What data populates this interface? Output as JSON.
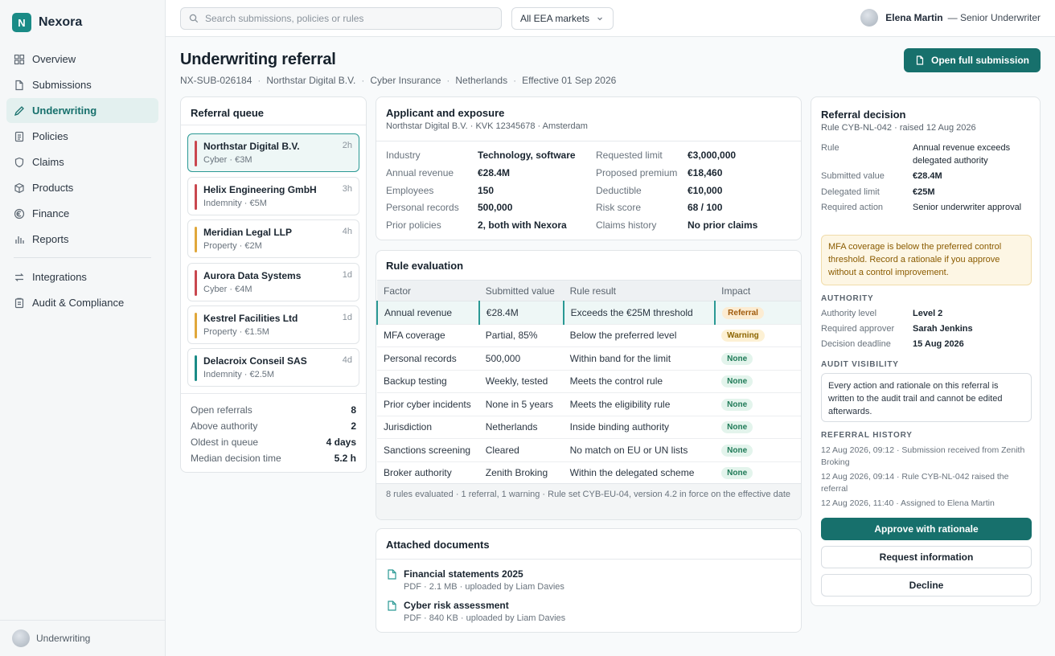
{
  "app": {
    "name": "Nexora",
    "logo_letter": "N"
  },
  "sidebar": {
    "items": [
      {
        "label": "Overview",
        "icon": "grid-icon"
      },
      {
        "label": "Submissions",
        "icon": "file-icon"
      },
      {
        "label": "Underwriting",
        "icon": "pen-icon",
        "active": true
      },
      {
        "label": "Policies",
        "icon": "document-icon"
      },
      {
        "label": "Claims",
        "icon": "shield-icon"
      },
      {
        "label": "Products",
        "icon": "box-icon"
      },
      {
        "label": "Finance",
        "icon": "euro-icon"
      },
      {
        "label": "Reports",
        "icon": "bar-chart-icon"
      }
    ],
    "secondary": [
      {
        "label": "Integrations",
        "icon": "arrows-icon"
      },
      {
        "label": "Audit & Compliance",
        "icon": "clipboard-icon"
      }
    ],
    "footer_label": "Underwriting"
  },
  "topbar": {
    "search_placeholder": "Search submissions, policies or rules",
    "market": "All EEA markets",
    "user_name": "Elena Martin",
    "user_role": "— Senior Underwriter"
  },
  "page": {
    "title": "Underwriting referral",
    "meta": [
      "NX-SUB-026184",
      "Northstar Digital B.V.",
      "Cyber Insurance",
      "Netherlands",
      "Effective 01 Sep 2026"
    ],
    "open_button": "Open full submission"
  },
  "queue": {
    "title": "Referral queue",
    "items": [
      {
        "name": "Northstar Digital B.V.",
        "sub": "Cyber · €3M",
        "time": "2h"
      },
      {
        "name": "Helix Engineering GmbH",
        "sub": "Indemnity · €5M",
        "time": "3h"
      },
      {
        "name": "Meridian Legal LLP",
        "sub": "Property · €2M",
        "time": "4h"
      },
      {
        "name": "Aurora Data Systems",
        "sub": "Cyber · €4M",
        "time": "1d"
      },
      {
        "name": "Kestrel Facilities Ltd",
        "sub": "Property · €1.5M",
        "time": "1d"
      },
      {
        "name": "Delacroix Conseil SAS",
        "sub": "Indemnity · €2.5M",
        "time": "4d"
      }
    ],
    "stats": [
      {
        "label": "Open referrals",
        "value": "8"
      },
      {
        "label": "Above authority",
        "value": "2"
      },
      {
        "label": "Oldest in queue",
        "value": "4 days"
      },
      {
        "label": "Median decision time",
        "value": "5.2 h"
      }
    ]
  },
  "applicant": {
    "title": "Applicant and exposure",
    "subtitle": "Northstar Digital B.V. · KVK 12345678 · Amsterdam",
    "left": [
      {
        "k": "Industry",
        "v": "Technology, software"
      },
      {
        "k": "Annual revenue",
        "v": "€28.4M"
      },
      {
        "k": "Employees",
        "v": "150"
      },
      {
        "k": "Personal records",
        "v": "500,000"
      },
      {
        "k": "Prior policies",
        "v": "2, both with Nexora"
      }
    ],
    "right": [
      {
        "k": "Requested limit",
        "v": "€3,000,000"
      },
      {
        "k": "Proposed premium",
        "v": "€18,460"
      },
      {
        "k": "Deductible",
        "v": "€10,000"
      },
      {
        "k": "Risk score",
        "v": "68 / 100"
      },
      {
        "k": "Claims history",
        "v": "No prior claims"
      }
    ]
  },
  "rules": {
    "title": "Rule evaluation",
    "headers": [
      "Factor",
      "Submitted value",
      "Rule result",
      "Impact"
    ],
    "rows": [
      {
        "factor": "Annual revenue",
        "value": "€28.4M",
        "result": "Exceeds the €25M threshold",
        "impact": "Referral"
      },
      {
        "factor": "MFA coverage",
        "value": "Partial, 85%",
        "result": "Below the preferred level",
        "impact": "Warning"
      },
      {
        "factor": "Personal records",
        "value": "500,000",
        "result": "Within band for the limit",
        "impact": "None"
      },
      {
        "factor": "Backup testing",
        "value": "Weekly, tested",
        "result": "Meets the control rule",
        "impact": "None"
      },
      {
        "factor": "Prior cyber incidents",
        "value": "None in 5 years",
        "result": "Meets the eligibility rule",
        "impact": "None"
      },
      {
        "factor": "Jurisdiction",
        "value": "Netherlands",
        "result": "Inside binding authority",
        "impact": "None"
      },
      {
        "factor": "Sanctions screening",
        "value": "Cleared",
        "result": "No match on EU or UN lists",
        "impact": "None"
      },
      {
        "factor": "Broker authority",
        "value": "Zenith Broking",
        "result": "Within the delegated scheme",
        "impact": "None"
      }
    ],
    "footer": "8 rules evaluated · 1 referral, 1 warning · Rule set CYB-EU-04, version 4.2 in force on the effective date"
  },
  "documents": {
    "title": "Attached documents",
    "items": [
      {
        "name": "Financial statements 2025",
        "meta": "PDF · 2.1 MB · uploaded by Liam Davies"
      },
      {
        "name": "Cyber risk assessment",
        "meta": "PDF · 840 KB · uploaded by Liam Davies"
      }
    ]
  },
  "decision": {
    "title": "Referral decision",
    "subtitle": "Rule CYB-NL-042 · raised 12 Aug 2026",
    "details": [
      {
        "k": "Rule",
        "v": "Annual revenue exceeds delegated authority"
      },
      {
        "k": "Submitted value",
        "v": "€28.4M"
      },
      {
        "k": "Delegated limit",
        "v": "€25M"
      },
      {
        "k": "Required action",
        "v": "Senior underwriter approval"
      }
    ],
    "alert": "MFA coverage is below the preferred control threshold. Record a rationale if you approve without a control improvement.",
    "authority_heading": "AUTHORITY",
    "authority": [
      {
        "k": "Authority level",
        "v": "Level 2"
      },
      {
        "k": "Required approver",
        "v": "Sarah Jenkins"
      },
      {
        "k": "Decision deadline",
        "v": "15 Aug 2026"
      }
    ],
    "audit_heading": "AUDIT VISIBILITY",
    "audit_text": "Every action and rationale on this referral is written to the audit trail and cannot be edited afterwards.",
    "history_heading": "REFERRAL HISTORY",
    "history": [
      "12 Aug 2026, 09:12 · Submission received from Zenith Broking",
      "12 Aug 2026, 09:14 · Rule CYB-NL-042 raised the referral",
      "12 Aug 2026, 11:40 · Assigned to Elena Martin"
    ],
    "approve": "Approve with rationale",
    "request": "Request information",
    "decline": "Decline"
  },
  "colors": {
    "accent": "#17706c",
    "cyber": "#c9474f",
    "property": "#e0a73a",
    "indemnity_bar": "#1a8b86"
  }
}
